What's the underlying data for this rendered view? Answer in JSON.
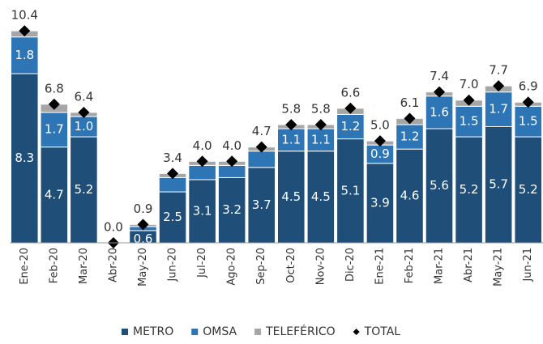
{
  "chart_data": {
    "type": "stacked_bar_total",
    "categories": [
      "Ene-20",
      "Feb-20",
      "Mar-20",
      "Abr-20",
      "May-20",
      "Jun-20",
      "Jul-20",
      "Ago-20",
      "Sep-20",
      "Oct-20",
      "Nov-20",
      "Dic-20",
      "Ene-21",
      "Feb-21",
      "Mar-21",
      "Abr-21",
      "May-21",
      "Jun-21"
    ],
    "series": [
      {
        "name": "METRO",
        "color": "#1f4e79",
        "values": [
          8.3,
          4.7,
          5.2,
          0,
          0.6,
          2.5,
          3.1,
          3.2,
          3.7,
          4.5,
          4.5,
          5.1,
          3.9,
          4.6,
          5.6,
          5.2,
          5.7,
          5.2
        ],
        "value_labels": [
          "8.3",
          "4.7",
          "5.2",
          null,
          "0.6",
          "2.5",
          "3.1",
          "3.2",
          "3.7",
          "4.5",
          "4.5",
          "5.1",
          "3.9",
          "4.6",
          "5.6",
          "5.2",
          "5.7",
          "5.2"
        ]
      },
      {
        "name": "OMSA",
        "color": "#2e75b6",
        "values": [
          1.8,
          1.7,
          1.0,
          0,
          0.2,
          0.7,
          0.7,
          0.6,
          0.8,
          1.1,
          1.1,
          1.2,
          0.9,
          1.2,
          1.6,
          1.5,
          1.7,
          1.5
        ],
        "value_labels": [
          "1.8",
          "1.7",
          "1.0",
          null,
          null,
          null,
          null,
          null,
          null,
          "1.1",
          "1.1",
          "1.2",
          "0.9",
          "1.2",
          "1.6",
          "1.5",
          "1.7",
          "1.5"
        ]
      },
      {
        "name": "TELEFÉRICO",
        "color": "#a6a6a6",
        "values": [
          0.3,
          0.4,
          0.2,
          0,
          0.1,
          0.2,
          0.2,
          0.2,
          0.2,
          0.2,
          0.2,
          0.3,
          0.2,
          0.3,
          0.2,
          0.3,
          0.3,
          0.2
        ]
      }
    ],
    "total": {
      "name": "TOTAL",
      "color": "#000000",
      "values": [
        10.4,
        6.8,
        6.4,
        0,
        0.9,
        3.4,
        4.0,
        4.0,
        4.7,
        5.8,
        5.8,
        6.6,
        5.0,
        6.1,
        7.4,
        7.0,
        7.7,
        6.9
      ],
      "value_labels": [
        "10.4",
        "6.8",
        "6.4",
        "0.0",
        "0.9",
        "3.4",
        "4.0",
        "4.0",
        "4.7",
        "5.8",
        "5.8",
        "6.6",
        "5.0",
        "6.1",
        "7.4",
        "7.0",
        "7.7",
        "6.9"
      ]
    },
    "ylim": [
      0,
      11
    ]
  }
}
